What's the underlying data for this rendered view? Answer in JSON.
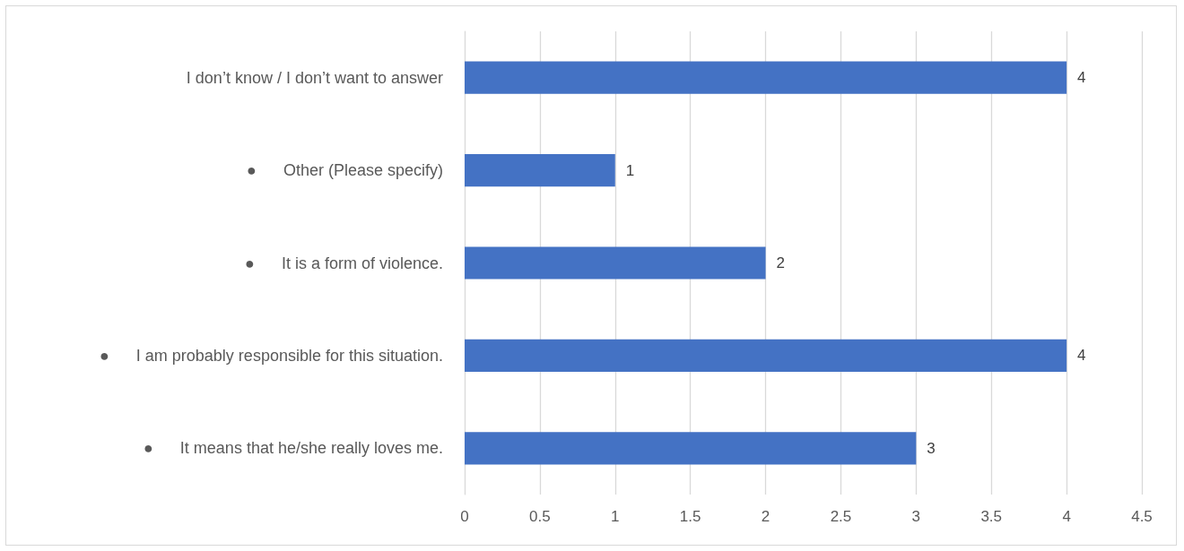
{
  "chart_data": {
    "type": "bar",
    "orientation": "horizontal",
    "categories": [
      "I don’t know / I don’t want to answer",
      "●      Other (Please specify)",
      "●      It is a form of violence.",
      "●      I am probably responsible for this situation.",
      "●      It means that he/she really loves me."
    ],
    "values": [
      4,
      1,
      2,
      4,
      3
    ],
    "color": "#4472c4",
    "xlim": [
      0,
      4.5
    ],
    "xticks": [
      0,
      0.5,
      1,
      1.5,
      2,
      2.5,
      3,
      3.5,
      4,
      4.5
    ],
    "grid": "x",
    "data_labels": true
  }
}
